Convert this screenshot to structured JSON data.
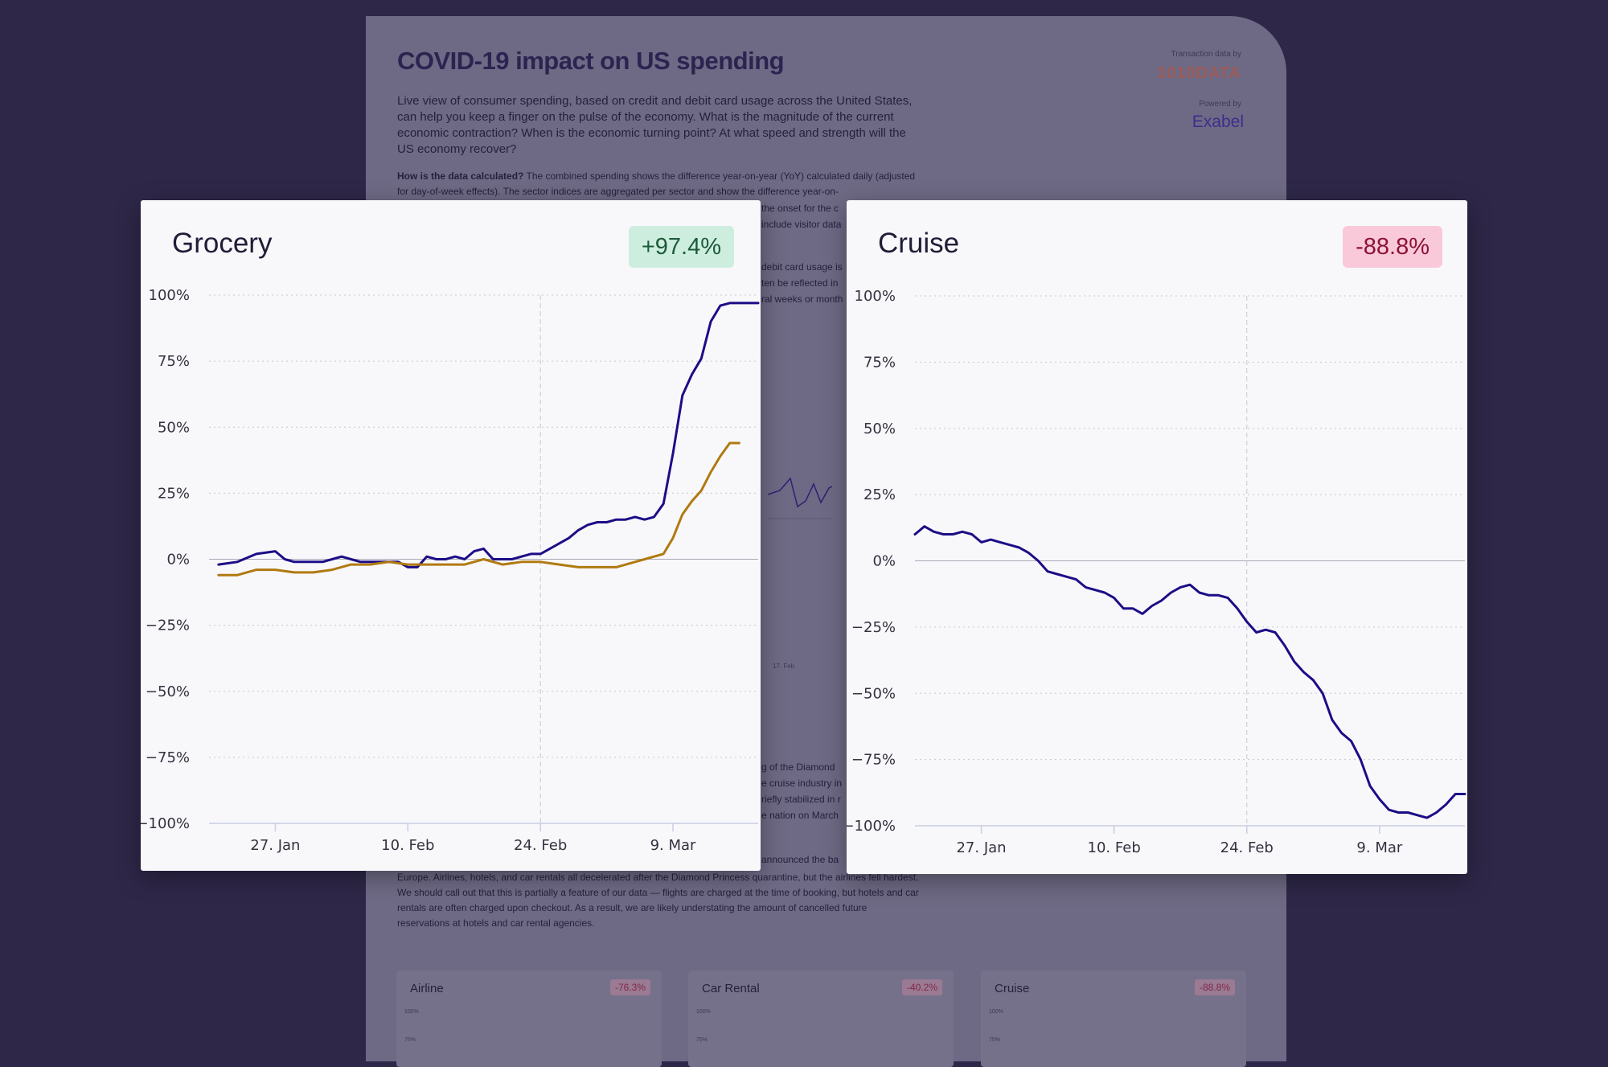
{
  "background_page": {
    "title": "COVID-19 impact on US spending",
    "intro": "Live view of consumer spending, based on credit and debit card usage across the United States, can help you keep a finger on the pulse of the economy. What is the magnitude of the current economic contraction? When is the economic turning point? At what speed and strength will the US economy recover?",
    "method_label": "How is the data calculated?",
    "method_text": " The combined spending shows the difference year-on-year (YoY) calculated daily (adjusted for day-of-week effects). The sector indices are aggregated per sector and show the difference year-on-",
    "method_frag_1": "the onset for the c",
    "method_frag_2": "include visitor data",
    "right_frag_1": "debit card usage is",
    "right_frag_2": "ten be reflected in",
    "right_frag_3": "ral weeks or month",
    "mid_frag_1": "g of the Diamond",
    "mid_frag_2": "e cruise industry in",
    "mid_frag_3": "riefly stabilized in r",
    "mid_frag_4": "e nation on March",
    "lower_frag": "announced the ba",
    "lower_text": "Europe. Airlines, hotels, and car rentals all decelerated after the Diamond Princess quarantine, but the airlines fell hardest. We should call out that this is partially a feature of our data — flights are charged at the time of booking, but hotels and car rentals are often charged upon checkout. As a result, we are likely understating the amount of cancelled future reservations at hotels and car rental agencies.",
    "feb_label": "17. Feb",
    "brand_caption_1": "Transaction data by",
    "brand_1": "1010DATA",
    "brand_caption_2": "Powered by",
    "brand_2": "Exabel",
    "mini_cards": [
      {
        "title": "Airline",
        "badge": "-76.3%",
        "axis_1": "100%",
        "axis_2": "75%"
      },
      {
        "title": "Car Rental",
        "badge": "-40.2%",
        "axis_1": "100%",
        "axis_2": "75%"
      },
      {
        "title": "Cruise",
        "badge": "-88.8%",
        "axis_1": "100%",
        "axis_2": "75%"
      }
    ]
  },
  "colors": {
    "sector_line": "#1c0d86",
    "combined_line": "#b07a10",
    "badge_positive_bg": "#cdeedf",
    "badge_negative_bg": "#fac9d9"
  },
  "chart_data": [
    {
      "type": "line",
      "title": "Grocery",
      "badge": "+97.4%",
      "y_ticks": [
        "100%",
        "75%",
        "50%",
        "25%",
        "0%",
        "−25%",
        "−50%",
        "−75%",
        "−100%"
      ],
      "x_ticks": [
        "27. Jan",
        "10. Feb",
        "24. Feb",
        "9. Mar"
      ],
      "x_tick_dates": [
        "2020-01-27",
        "2020-02-10",
        "2020-02-24",
        "2020-03-09"
      ],
      "ylim": [
        -100,
        100
      ],
      "xlim": [
        "2020-01-20",
        "2020-03-18"
      ],
      "grid": true,
      "series": [
        {
          "color": "#1c0d86",
          "x": [
            "2020-01-21",
            "2020-01-23",
            "2020-01-25",
            "2020-01-27",
            "2020-01-28",
            "2020-01-29",
            "2020-01-30",
            "2020-01-31",
            "2020-02-01",
            "2020-02-02",
            "2020-02-03",
            "2020-02-04",
            "2020-02-05",
            "2020-02-06",
            "2020-02-07",
            "2020-02-08",
            "2020-02-09",
            "2020-02-10",
            "2020-02-11",
            "2020-02-12",
            "2020-02-13",
            "2020-02-14",
            "2020-02-15",
            "2020-02-16",
            "2020-02-17",
            "2020-02-18",
            "2020-02-19",
            "2020-02-20",
            "2020-02-21",
            "2020-02-22",
            "2020-02-23",
            "2020-02-24",
            "2020-02-25",
            "2020-02-26",
            "2020-02-27",
            "2020-02-28",
            "2020-02-29",
            "2020-03-01",
            "2020-03-02",
            "2020-03-03",
            "2020-03-04",
            "2020-03-05",
            "2020-03-06",
            "2020-03-07",
            "2020-03-08",
            "2020-03-09",
            "2020-03-10",
            "2020-03-11",
            "2020-03-12",
            "2020-03-13",
            "2020-03-14",
            "2020-03-15",
            "2020-03-16",
            "2020-03-17",
            "2020-03-18"
          ],
          "y": [
            -2,
            -1,
            2,
            3,
            0,
            -1,
            -1,
            -1,
            -1,
            0,
            1,
            0,
            -1,
            -1,
            -1,
            -1,
            -1,
            -3,
            -3,
            1,
            0,
            0,
            1,
            0,
            3,
            4,
            0,
            0,
            0,
            1,
            2,
            2,
            4,
            6,
            8,
            11,
            13,
            14,
            14,
            15,
            15,
            16,
            15,
            16,
            21,
            40,
            62,
            70,
            76,
            90,
            96,
            97,
            97,
            97,
            97
          ]
        },
        {
          "color": "#b07a10",
          "x": [
            "2020-01-21",
            "2020-01-23",
            "2020-01-25",
            "2020-01-27",
            "2020-01-29",
            "2020-01-31",
            "2020-02-02",
            "2020-02-04",
            "2020-02-06",
            "2020-02-08",
            "2020-02-10",
            "2020-02-12",
            "2020-02-14",
            "2020-02-16",
            "2020-02-18",
            "2020-02-20",
            "2020-02-22",
            "2020-02-24",
            "2020-02-26",
            "2020-02-28",
            "2020-03-01",
            "2020-03-03",
            "2020-03-05",
            "2020-03-06",
            "2020-03-07",
            "2020-03-08",
            "2020-03-09",
            "2020-03-10",
            "2020-03-11",
            "2020-03-12",
            "2020-03-13",
            "2020-03-14",
            "2020-03-15",
            "2020-03-16"
          ],
          "y": [
            -6,
            -6,
            -4,
            -4,
            -5,
            -5,
            -4,
            -2,
            -2,
            -1,
            -2,
            -2,
            -2,
            -2,
            0,
            -2,
            -1,
            -1,
            -2,
            -3,
            -3,
            -3,
            -1,
            0,
            1,
            2,
            8,
            17,
            22,
            26,
            33,
            39,
            44,
            44
          ]
        }
      ]
    },
    {
      "type": "line",
      "title": "Cruise",
      "badge": "-88.8%",
      "y_ticks": [
        "100%",
        "75%",
        "50%",
        "25%",
        "0%",
        "−25%",
        "−50%",
        "−75%",
        "−100%"
      ],
      "x_ticks": [
        "27. Jan",
        "10. Feb",
        "24. Feb",
        "9. Mar"
      ],
      "x_tick_dates": [
        "2020-01-27",
        "2020-02-10",
        "2020-02-24",
        "2020-03-09"
      ],
      "ylim": [
        -100,
        100
      ],
      "xlim": [
        "2020-01-20",
        "2020-03-18"
      ],
      "grid": true,
      "series": [
        {
          "color": "#1c0d86",
          "x": [
            "2020-01-20",
            "2020-01-21",
            "2020-01-22",
            "2020-01-23",
            "2020-01-24",
            "2020-01-25",
            "2020-01-26",
            "2020-01-27",
            "2020-01-28",
            "2020-01-29",
            "2020-01-30",
            "2020-01-31",
            "2020-02-01",
            "2020-02-02",
            "2020-02-03",
            "2020-02-04",
            "2020-02-05",
            "2020-02-06",
            "2020-02-07",
            "2020-02-08",
            "2020-02-09",
            "2020-02-10",
            "2020-02-11",
            "2020-02-12",
            "2020-02-13",
            "2020-02-14",
            "2020-02-15",
            "2020-02-16",
            "2020-02-17",
            "2020-02-18",
            "2020-02-19",
            "2020-02-20",
            "2020-02-21",
            "2020-02-22",
            "2020-02-23",
            "2020-02-24",
            "2020-02-25",
            "2020-02-26",
            "2020-02-27",
            "2020-02-28",
            "2020-02-29",
            "2020-03-01",
            "2020-03-02",
            "2020-03-03",
            "2020-03-04",
            "2020-03-05",
            "2020-03-06",
            "2020-03-07",
            "2020-03-08",
            "2020-03-09",
            "2020-03-10",
            "2020-03-11",
            "2020-03-12",
            "2020-03-13",
            "2020-03-14",
            "2020-03-15",
            "2020-03-16",
            "2020-03-17",
            "2020-03-18"
          ],
          "y": [
            10,
            13,
            11,
            10,
            10,
            11,
            10,
            7,
            8,
            7,
            6,
            5,
            3,
            0,
            -4,
            -5,
            -6,
            -7,
            -10,
            -11,
            -12,
            -14,
            -18,
            -18,
            -20,
            -17,
            -15,
            -12,
            -10,
            -9,
            -12,
            -13,
            -13,
            -14,
            -18,
            -23,
            -27,
            -26,
            -27,
            -32,
            -38,
            -42,
            -45,
            -50,
            -60,
            -65,
            -68,
            -75,
            -85,
            -90,
            -94,
            -95,
            -95,
            -96,
            -97,
            -95,
            -92,
            -88,
            -88
          ]
        }
      ]
    }
  ]
}
